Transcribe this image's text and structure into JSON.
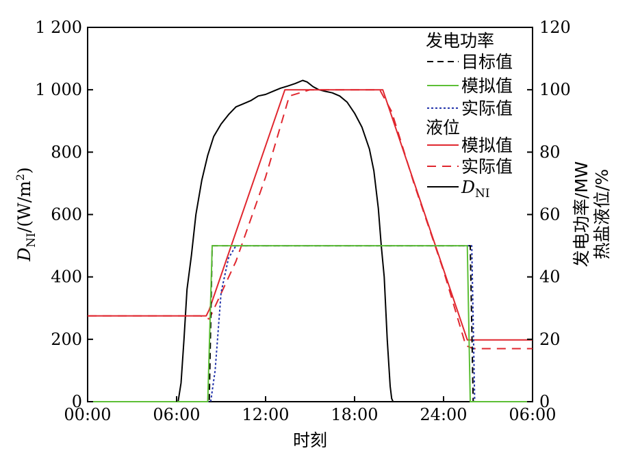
{
  "chart_data": {
    "type": "line",
    "xlabel": "时刻",
    "x_ticks": [
      "00:00",
      "06:00",
      "12:00",
      "18:00",
      "24:00",
      "06:00"
    ],
    "x_range_hours": [
      0,
      30
    ],
    "y_left": {
      "label_main": "D",
      "label_sub": "NI",
      "label_unit": "/(W/m",
      "label_sup": "2",
      "label_close": ")",
      "ylim": [
        0,
        1200
      ],
      "ticks": [
        "0",
        "200",
        "400",
        "600",
        "800",
        "1 000",
        "1 200"
      ]
    },
    "y_right": {
      "label_line1": "发电功率/MW",
      "label_line2": "热盐液位/%",
      "ylim": [
        0,
        120
      ],
      "ticks": [
        "0",
        "20",
        "40",
        "60",
        "80",
        "100",
        "120"
      ]
    },
    "legend": {
      "group1_title": "发电功率",
      "group2_title": "液位",
      "dni_main": "D",
      "dni_sub": "NI"
    },
    "series": [
      {
        "name": "目标值",
        "group": "发电功率",
        "axis": "right",
        "color": "#000000",
        "dash": "9,6",
        "points": [
          [
            0,
            0
          ],
          [
            8.2,
            0
          ],
          [
            8.4,
            50
          ],
          [
            25.8,
            50
          ],
          [
            26,
            0
          ],
          [
            30,
            0
          ]
        ]
      },
      {
        "name": "模拟值",
        "group": "发电功率",
        "axis": "right",
        "color": "#5cbf35",
        "dash": "",
        "points": [
          [
            0,
            0
          ],
          [
            8.1,
            0
          ],
          [
            8.4,
            50
          ],
          [
            25.6,
            50
          ],
          [
            25.8,
            0
          ],
          [
            30,
            0
          ]
        ]
      },
      {
        "name": "实际值",
        "group": "发电功率",
        "axis": "right",
        "color": "#2233aa",
        "dash": "3,3",
        "points": [
          [
            0,
            0
          ],
          [
            8.3,
            0
          ],
          [
            8.6,
            10
          ],
          [
            9,
            35
          ],
          [
            9.5,
            46
          ],
          [
            10,
            50
          ],
          [
            25.9,
            50
          ],
          [
            26.1,
            0
          ],
          [
            30,
            0
          ]
        ]
      },
      {
        "name": "模拟值",
        "group": "液位",
        "axis": "right",
        "color": "#e0262e",
        "dash": "",
        "points": [
          [
            0,
            27.5
          ],
          [
            8,
            27.5
          ],
          [
            8.2,
            29.5
          ],
          [
            13.3,
            100
          ],
          [
            19.9,
            100
          ],
          [
            25.6,
            19.8
          ],
          [
            30,
            19.8
          ]
        ]
      },
      {
        "name": "实际值",
        "group": "液位",
        "axis": "right",
        "color": "#e0262e",
        "dash": "13,9",
        "points": [
          [
            0,
            27.5
          ],
          [
            7.6,
            27.5
          ],
          [
            8.2,
            26.5
          ],
          [
            10,
            45
          ],
          [
            12,
            72
          ],
          [
            13.6,
            98
          ],
          [
            15,
            100
          ],
          [
            19.7,
            100
          ],
          [
            20.5,
            93
          ],
          [
            22,
            70
          ],
          [
            24,
            42
          ],
          [
            25.5,
            18
          ],
          [
            26,
            17
          ],
          [
            30,
            17
          ]
        ]
      },
      {
        "name": "DNI",
        "group": "DNI",
        "axis": "left",
        "color": "#000000",
        "dash": "",
        "points": [
          [
            0,
            0
          ],
          [
            6.1,
            0
          ],
          [
            6.3,
            60
          ],
          [
            6.5,
            200
          ],
          [
            6.7,
            360
          ],
          [
            7,
            470
          ],
          [
            7.3,
            600
          ],
          [
            7.7,
            710
          ],
          [
            8.1,
            790
          ],
          [
            8.5,
            850
          ],
          [
            9,
            890
          ],
          [
            9.5,
            920
          ],
          [
            10,
            945
          ],
          [
            10.5,
            955
          ],
          [
            11,
            965
          ],
          [
            11.5,
            980
          ],
          [
            12,
            985
          ],
          [
            12.5,
            995
          ],
          [
            13,
            1005
          ],
          [
            13.5,
            1012
          ],
          [
            14,
            1020
          ],
          [
            14.5,
            1030
          ],
          [
            14.8,
            1025
          ],
          [
            15.2,
            1010
          ],
          [
            15.6,
            1000
          ],
          [
            16,
            995
          ],
          [
            16.5,
            990
          ],
          [
            17,
            980
          ],
          [
            17.5,
            960
          ],
          [
            18,
            925
          ],
          [
            18.5,
            880
          ],
          [
            19,
            810
          ],
          [
            19.3,
            740
          ],
          [
            19.6,
            620
          ],
          [
            19.8,
            500
          ],
          [
            20,
            400
          ],
          [
            20.2,
            200
          ],
          [
            20.4,
            50
          ],
          [
            20.5,
            10
          ],
          [
            20.6,
            0
          ],
          [
            30,
            0
          ]
        ]
      }
    ]
  }
}
